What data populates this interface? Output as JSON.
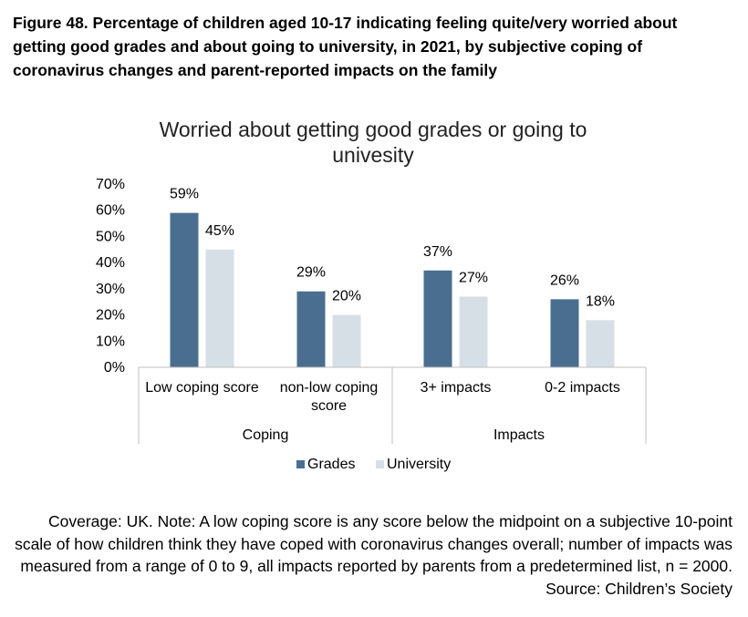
{
  "figure_heading": "Figure 48. Percentage of children aged 10-17 indicating feeling quite/very worried about getting good grades and about going to university, in 2021, by subjective coping of coronavirus changes and parent-reported impacts on the family",
  "chart_data": {
    "type": "bar",
    "title_lines": [
      "Worried about getting good grades or going to",
      "univesity"
    ],
    "categories": [
      [
        "Low coping score"
      ],
      [
        "non-low coping",
        "score"
      ],
      [
        "3+ impacts"
      ],
      [
        "0-2 impacts"
      ]
    ],
    "groups": [
      {
        "label": "Coping",
        "span": [
          0,
          1
        ]
      },
      {
        "label": "Impacts",
        "span": [
          2,
          3
        ]
      }
    ],
    "series": [
      {
        "name": "Grades",
        "color": "#4a6e8f",
        "values": [
          59,
          29,
          37,
          26
        ],
        "value_labels": [
          "59%",
          "29%",
          "37%",
          "26%"
        ]
      },
      {
        "name": "University",
        "color": "#d6dfe6",
        "values": [
          45,
          20,
          27,
          18
        ],
        "value_labels": [
          "45%",
          "20%",
          "27%",
          "18%"
        ]
      }
    ],
    "ylim": [
      0,
      70
    ],
    "yticks": [
      0,
      10,
      20,
      30,
      40,
      50,
      60,
      70
    ],
    "ytick_labels": [
      "0%",
      "10%",
      "20%",
      "30%",
      "40%",
      "50%",
      "60%",
      "70%"
    ],
    "xlabel": "",
    "ylabel": "",
    "grid": false,
    "legend_position": "bottom"
  },
  "note": "Coverage: UK. Note: A low coping score is any score below the midpoint on a subjective 10-point scale of how children think they have coped with coronavirus changes overall; number of impacts was measured from a range of 0 to 9, all impacts reported by parents from a predetermined list, n = 2000. Source: Children’s Society"
}
